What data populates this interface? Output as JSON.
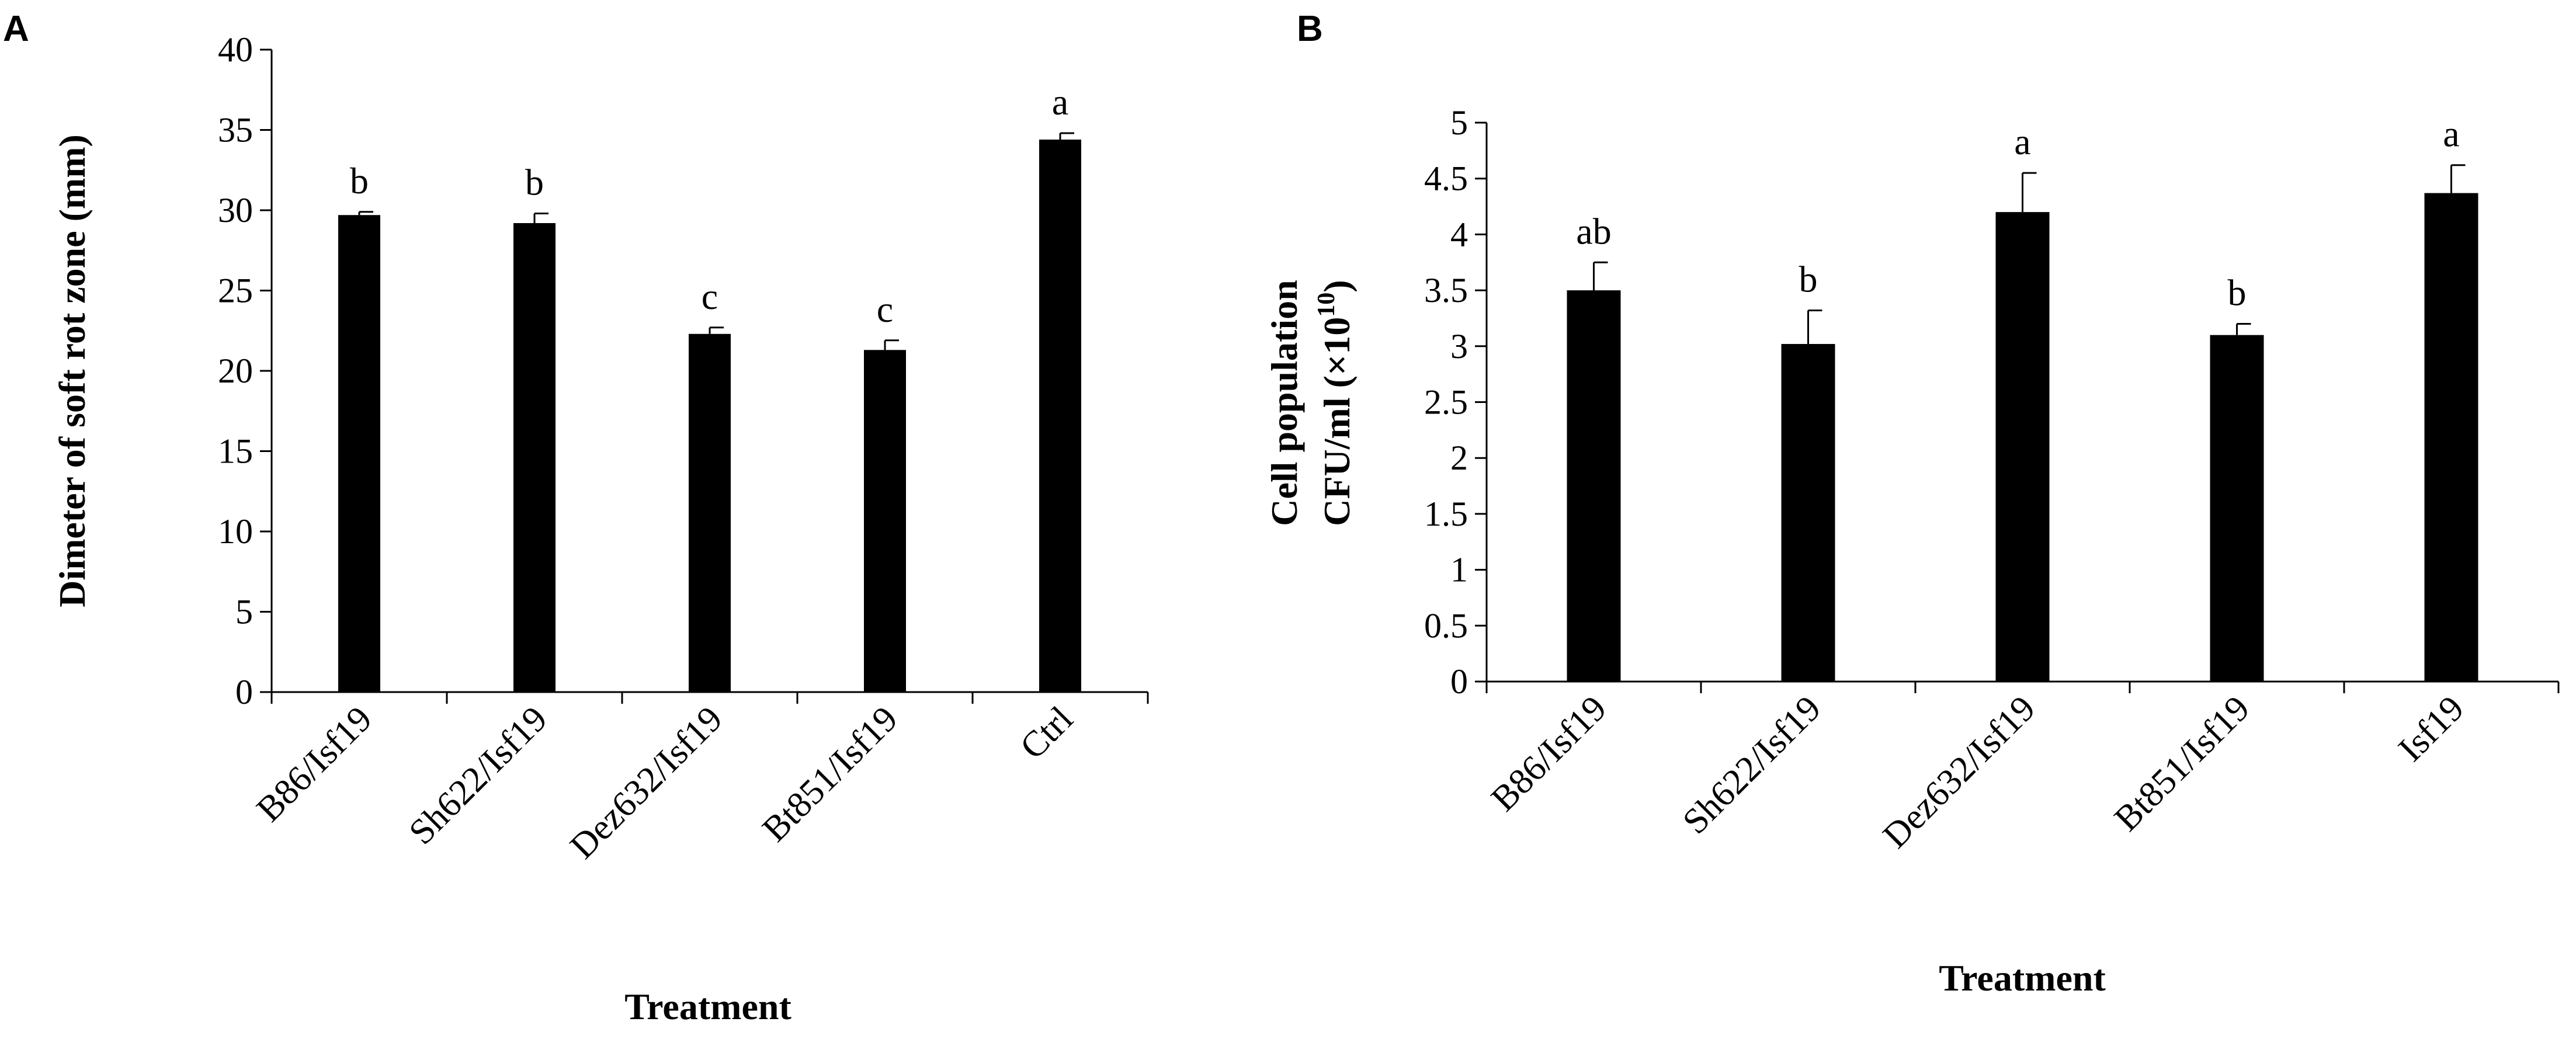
{
  "chart_data": [
    {
      "panel": "A",
      "type": "bar",
      "categories": [
        "B86/Isf19",
        "Sh622/Isf19",
        "Dez632/Isf19",
        "Bt851/Isf19",
        "Ctrl"
      ],
      "values": [
        29.7,
        29.2,
        22.3,
        21.3,
        34.4
      ],
      "errors": [
        0.2,
        0.6,
        0.4,
        0.6,
        0.4
      ],
      "significance_labels": [
        "b",
        "b",
        "c",
        "c",
        "a"
      ],
      "xlabel": "Treatment",
      "ylabel": "Dimeter of soft rot zone (mm)",
      "ylabel_super": "",
      "ylim": [
        0,
        40
      ],
      "yticks": [
        "0",
        "5",
        "10",
        "15",
        "20",
        "25",
        "30",
        "35",
        "40"
      ],
      "ytick_values": [
        0,
        5,
        10,
        15,
        20,
        25,
        30,
        35,
        40
      ],
      "grid": false,
      "legend": "none"
    },
    {
      "panel": "B",
      "type": "bar",
      "categories": [
        "B86/Isf19",
        "Sh622/Isf19",
        "Dez632/Isf19",
        "Bt851/Isf19",
        "Isf19"
      ],
      "values": [
        3.5,
        3.02,
        4.2,
        3.1,
        4.37
      ],
      "errors": [
        0.25,
        0.3,
        0.35,
        0.1,
        0.25
      ],
      "significance_labels": [
        "ab",
        "b",
        "a",
        "b",
        "a"
      ],
      "xlabel": "Treatment",
      "ylabel_lines": [
        "Cell population",
        "CFU/ml  (×10",
        ")"
      ],
      "ylabel_super": "10",
      "ylim": [
        0,
        5
      ],
      "yticks": [
        "0",
        "0.5",
        "1",
        "1.5",
        "2",
        "2.5",
        "3",
        "3.5",
        "4",
        "4.5",
        "5"
      ],
      "ytick_values": [
        0,
        0.5,
        1,
        1.5,
        2,
        2.5,
        3,
        3.5,
        4,
        4.5,
        5
      ],
      "grid": false,
      "legend": "none"
    }
  ]
}
